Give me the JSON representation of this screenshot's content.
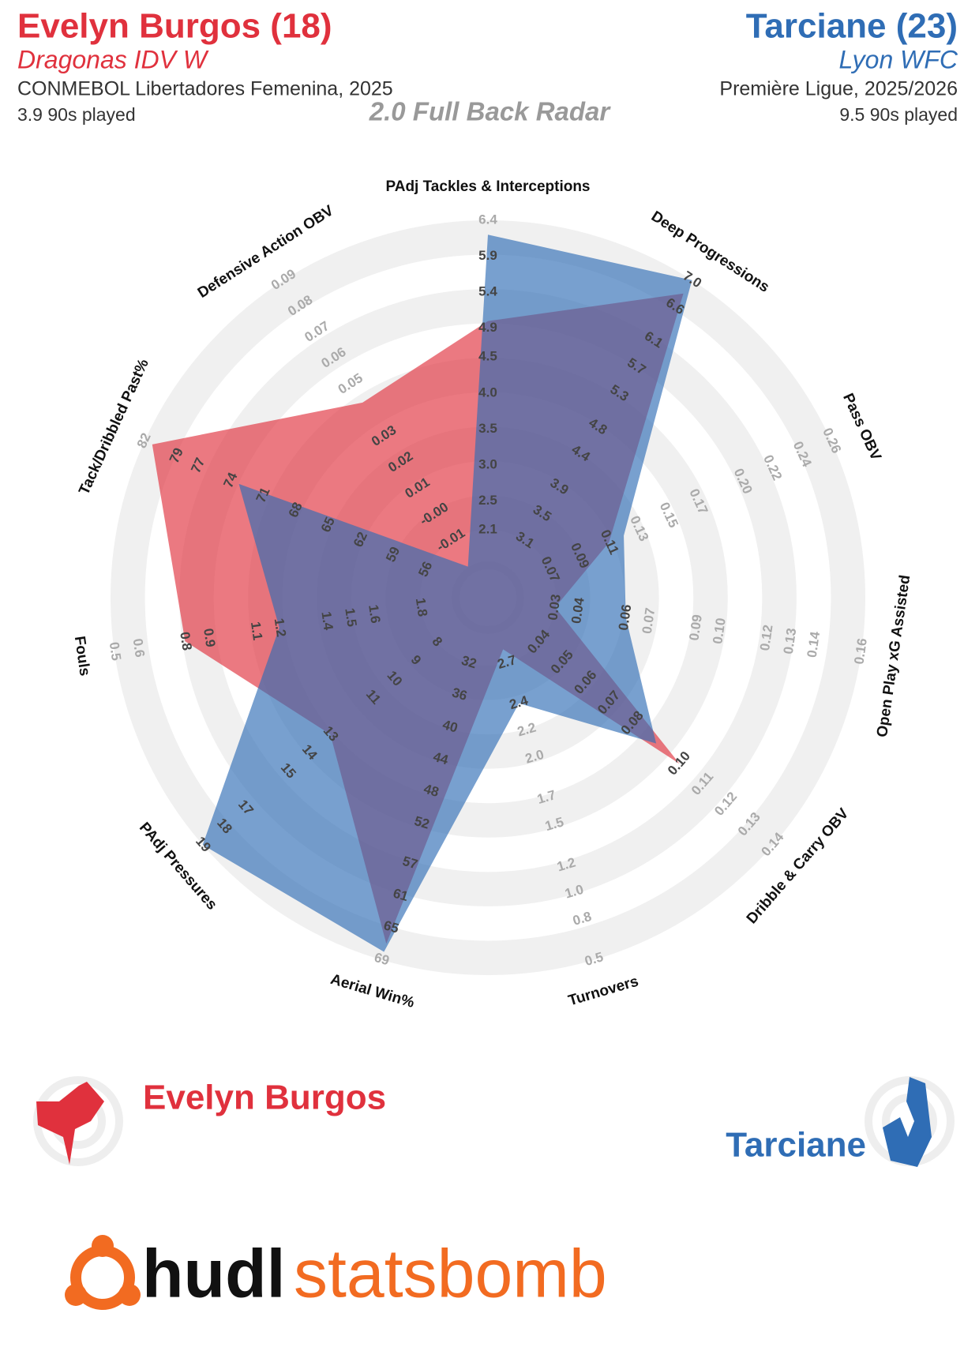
{
  "chart_data": {
    "type": "radar",
    "title": "2.0 Full Back Radar",
    "players": [
      {
        "title": "Evelyn Burgos (18)",
        "team": "Dragonas IDV W",
        "competition": "CONMEBOL Libertadores Femenina, 2025",
        "minutes": "3.9 90s played"
      },
      {
        "title": "Tarciane (23)",
        "team": "Lyon WFC",
        "competition": "Première Ligue, 2025/2026",
        "minutes": "9.5 90s played"
      }
    ],
    "axes": [
      {
        "name": "PAdj Tackles & Interceptions",
        "lim": [
          2.1,
          6.4
        ],
        "ticks": [
          2.1,
          2.5,
          {
            "value": 3,
            "label": "3.0"
          },
          3.5,
          {
            "value": 4,
            "label": "4.0"
          },
          4.5,
          4.9,
          5.4,
          5.9,
          6.4
        ]
      },
      {
        "name": "Deep Progressions",
        "lim": [
          3.1,
          7
        ],
        "ticks": [
          3.1,
          3.5,
          3.9,
          4.4,
          4.8,
          5.3,
          5.7,
          6.1,
          6.6,
          {
            "value": 7,
            "label": "7.0"
          }
        ]
      },
      {
        "name": "Pass OBV",
        "lim": [
          0.07,
          0.26
        ],
        "ticks": [
          0.07,
          0.09,
          0.11,
          0.13,
          0.15,
          0.17,
          {
            "value": 0.2,
            "label": "0.20"
          },
          0.22,
          0.24,
          0.26
        ]
      },
      {
        "name": "Open Play xG Assisted",
        "lim": [
          0.03,
          0.16
        ],
        "ticks": [
          0.03,
          0.04,
          0.06,
          0.07,
          0.09,
          {
            "value": 0.1,
            "label": "0.10"
          },
          0.12,
          0.13,
          0.14,
          0.16
        ]
      },
      {
        "name": "Dribble & Carry OBV",
        "lim": [
          0.04,
          0.14
        ],
        "ticks": [
          0.04,
          0.05,
          0.06,
          0.07,
          0.08,
          {
            "value": 0.1,
            "label": "0.10"
          },
          0.11,
          0.12,
          0.13,
          0.14
        ]
      },
      {
        "name": "Turnovers",
        "lim": [
          2.7,
          0.5
        ],
        "ticks": [
          2.7,
          2.4,
          2.2,
          {
            "value": 2,
            "label": "2.0"
          },
          1.7,
          1.5,
          1.2,
          {
            "value": 1,
            "label": "1.0"
          },
          0.8,
          0.5
        ]
      },
      {
        "name": "Aerial Win%",
        "lim": [
          32,
          69
        ],
        "ticks": [
          32,
          36,
          40,
          44,
          48,
          52,
          57,
          61,
          65,
          69
        ]
      },
      {
        "name": "PAdj Pressures",
        "lim": [
          8,
          19
        ],
        "ticks": [
          8,
          9,
          10,
          11,
          13,
          14,
          15,
          17,
          18,
          19
        ]
      },
      {
        "name": "Fouls",
        "lim": [
          1.8,
          0.5
        ],
        "ticks": [
          1.8,
          1.6,
          1.5,
          1.4,
          1.2,
          1.1,
          0.9,
          0.8,
          0.6,
          0.5
        ]
      },
      {
        "name": "Tack/Dribbled Past%",
        "lim": [
          56,
          82
        ],
        "ticks": [
          56,
          59,
          62,
          65,
          68,
          71,
          74,
          77,
          79,
          82
        ]
      },
      {
        "name": "Defensive Action OBV",
        "lim": [
          -0.01,
          0.09
        ],
        "ticks": [
          -0.01,
          {
            "value": 0,
            "label": "-0.00"
          },
          0.01,
          0.02,
          0.03,
          0.05,
          0.06,
          0.07,
          0.08,
          0.09
        ]
      }
    ],
    "series": [
      {
        "name": "Evelyn Burgos",
        "color": "#e0313d",
        "values": [
          5.0,
          6.8,
          0.11,
          0.03,
          0.1,
          2.8,
          67,
          13,
          0.8,
          81.3,
          0.043
        ]
      },
      {
        "name": "Tarciane",
        "color": "#2f6db5",
        "values": [
          6.2,
          7.0,
          0.12,
          0.06,
          0.09,
          2.4,
          68,
          19,
          1.2,
          73.3,
          -0.02
        ]
      }
    ],
    "branding": [
      "hudl",
      "statsbomb"
    ]
  }
}
